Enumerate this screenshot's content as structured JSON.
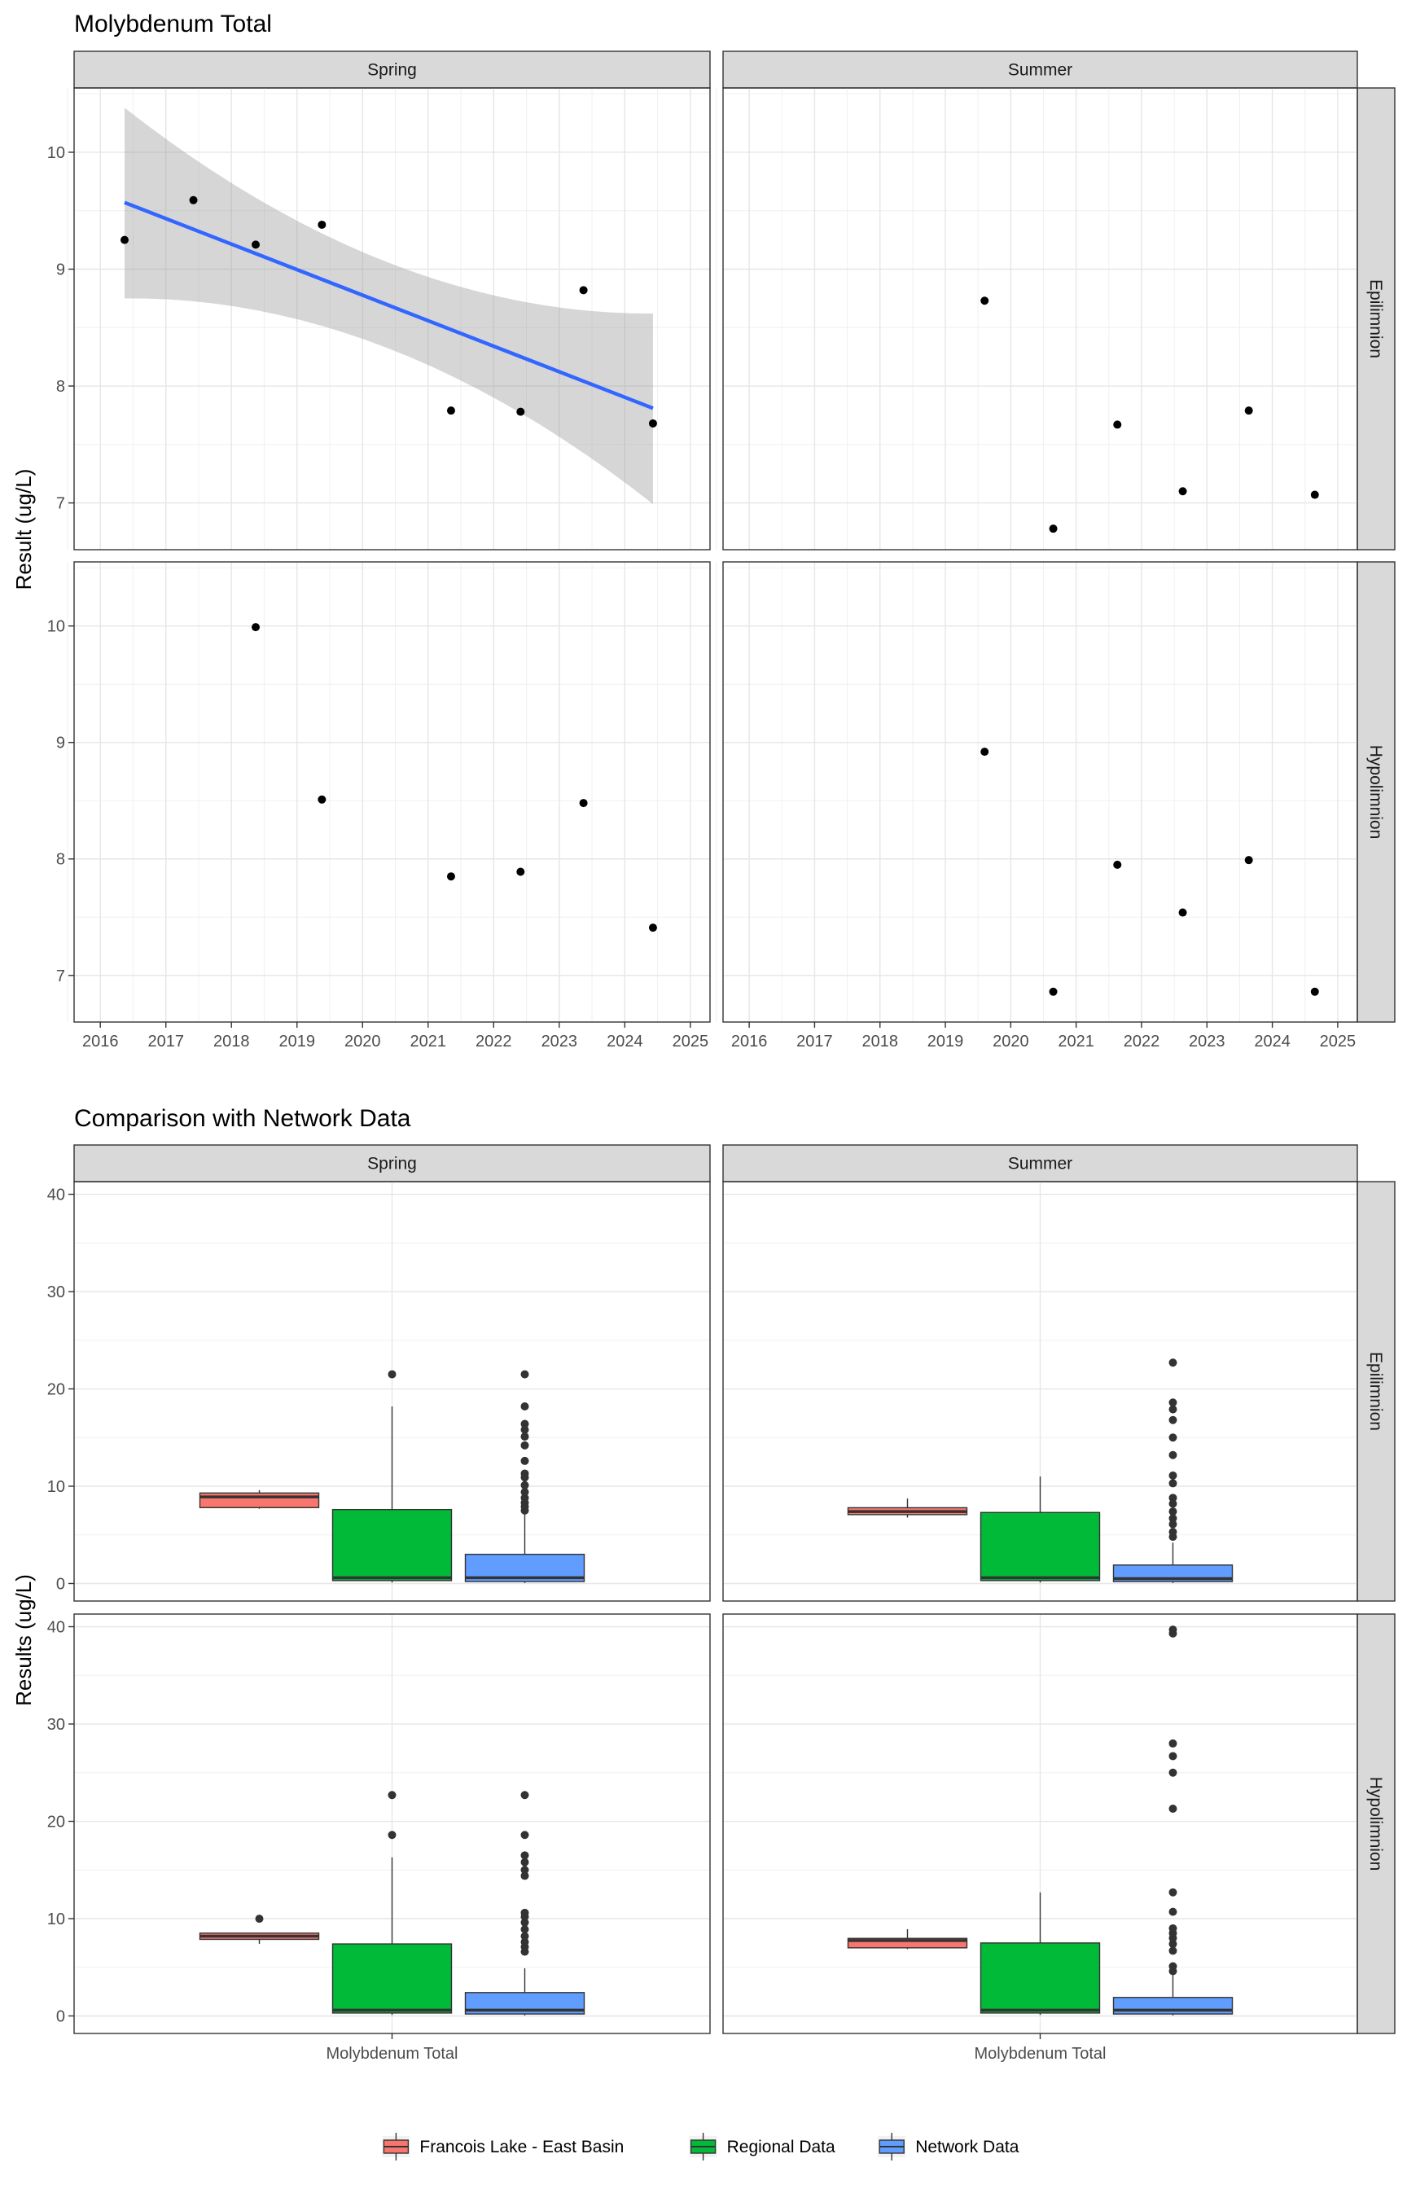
{
  "chart_data": [
    {
      "type": "scatter",
      "title": "Molybdenum Total",
      "ylabel": "Result (ug/L)",
      "xlabel": "",
      "facet_cols": [
        "Spring",
        "Summer"
      ],
      "facet_rows": [
        "Epilimnion",
        "Hypolimnion"
      ],
      "x_ticks": [
        "2016",
        "2017",
        "2018",
        "2019",
        "2020",
        "2021",
        "2022",
        "2023",
        "2024",
        "2025"
      ],
      "y_ticks": [
        "7",
        "8",
        "9",
        "10"
      ],
      "xlim": [
        2015.6,
        2025.3
      ],
      "ylim": [
        6.6,
        10.55
      ],
      "grid": true,
      "panels": [
        {
          "row": "Epilimnion",
          "col": "Spring",
          "x": [
            2016.37,
            2017.42,
            2018.37,
            2019.38,
            2021.35,
            2022.41,
            2023.37,
            2024.43
          ],
          "y": [
            9.25,
            9.59,
            9.21,
            9.38,
            7.79,
            7.78,
            8.82,
            7.68
          ],
          "trend": {
            "x": [
              2016.37,
              2024.43
            ],
            "y": [
              9.57,
              7.81
            ],
            "se_low": [
              8.75,
              7.0
            ],
            "se_high": [
              10.38,
              8.63
            ],
            "color": "#3366ff"
          }
        },
        {
          "row": "Epilimnion",
          "col": "Summer",
          "x": [
            2019.6,
            2020.65,
            2021.63,
            2022.63,
            2023.64,
            2024.65
          ],
          "y": [
            8.73,
            6.78,
            7.67,
            7.1,
            7.79,
            7.07
          ]
        },
        {
          "row": "Hypolimnion",
          "col": "Spring",
          "x": [
            2018.37,
            2019.38,
            2021.35,
            2022.41,
            2023.37,
            2024.43
          ],
          "y": [
            9.99,
            8.51,
            7.85,
            7.89,
            8.48,
            7.41
          ]
        },
        {
          "row": "Hypolimnion",
          "col": "Summer",
          "x": [
            2019.6,
            2020.65,
            2021.63,
            2022.63,
            2023.64,
            2024.65
          ],
          "y": [
            8.92,
            6.86,
            7.95,
            7.54,
            7.99,
            6.86
          ]
        }
      ]
    },
    {
      "type": "box",
      "title": "Comparison with Network Data",
      "ylabel": "Results (ug/L)",
      "xlabel": "",
      "category": "Molybdenum Total",
      "facet_cols": [
        "Spring",
        "Summer"
      ],
      "facet_rows": [
        "Epilimnion",
        "Hypolimnion"
      ],
      "y_ticks": [
        "0",
        "10",
        "20",
        "30",
        "40"
      ],
      "ylim": [
        -1.8,
        41.3
      ],
      "grid": true,
      "legend": {
        "position": "bottom",
        "entries": [
          {
            "name": "Francois Lake - East Basin",
            "color": "#f8766d"
          },
          {
            "name": "Regional Data",
            "color": "#00ba38"
          },
          {
            "name": "Network Data",
            "color": "#619cff"
          }
        ]
      },
      "panels": [
        {
          "row": "Epilimnion",
          "col": "Spring",
          "boxes": [
            {
              "series": "Francois Lake - East Basin",
              "low": 7.68,
              "q1": 7.8,
              "median": 8.9,
              "q3": 9.3,
              "high": 9.59,
              "outliers": []
            },
            {
              "series": "Regional Data",
              "low": 0.1,
              "q1": 0.3,
              "median": 0.6,
              "q3": 7.6,
              "high": 18.2,
              "outliers": [
                21.5
              ]
            },
            {
              "series": "Network Data",
              "low": 0.05,
              "q1": 0.2,
              "median": 0.6,
              "q3": 3.0,
              "high": 7.1,
              "outliers": [
                7.5,
                7.9,
                8.3,
                8.8,
                9.4,
                10.1,
                10.9,
                11.3,
                12.6,
                14.2,
                15.1,
                15.8,
                16.4,
                18.2,
                21.5
              ]
            }
          ]
        },
        {
          "row": "Epilimnion",
          "col": "Summer",
          "boxes": [
            {
              "series": "Francois Lake - East Basin",
              "low": 6.78,
              "q1": 7.08,
              "median": 7.4,
              "q3": 7.79,
              "high": 8.73,
              "outliers": []
            },
            {
              "series": "Regional Data",
              "low": 0.1,
              "q1": 0.3,
              "median": 0.6,
              "q3": 7.3,
              "high": 11.0,
              "outliers": []
            },
            {
              "series": "Network Data",
              "low": 0.05,
              "q1": 0.2,
              "median": 0.5,
              "q3": 1.9,
              "high": 4.2,
              "outliers": [
                4.8,
                5.3,
                6.1,
                6.7,
                7.4,
                8.2,
                8.8,
                10.3,
                11.1,
                13.2,
                15.0,
                16.8,
                17.9,
                18.6,
                22.7
              ]
            }
          ]
        },
        {
          "row": "Hypolimnion",
          "col": "Spring",
          "boxes": [
            {
              "series": "Francois Lake - East Basin",
              "low": 7.41,
              "q1": 7.87,
              "median": 8.2,
              "q3": 8.51,
              "high": 8.51,
              "outliers": [
                9.99
              ]
            },
            {
              "series": "Regional Data",
              "low": 0.1,
              "q1": 0.3,
              "median": 0.6,
              "q3": 7.4,
              "high": 16.3,
              "outliers": [
                18.6,
                22.7
              ]
            },
            {
              "series": "Network Data",
              "low": 0.05,
              "q1": 0.2,
              "median": 0.6,
              "q3": 2.4,
              "high": 4.9,
              "outliers": [
                6.6,
                7.1,
                7.6,
                8.2,
                8.9,
                9.6,
                10.2,
                10.6,
                14.4,
                15.0,
                15.8,
                16.5,
                18.6,
                22.7
              ]
            }
          ]
        },
        {
          "row": "Hypolimnion",
          "col": "Summer",
          "boxes": [
            {
              "series": "Francois Lake - East Basin",
              "low": 6.86,
              "q1": 7.0,
              "median": 7.75,
              "q3": 7.97,
              "high": 8.92,
              "outliers": []
            },
            {
              "series": "Regional Data",
              "low": 0.1,
              "q1": 0.3,
              "median": 0.6,
              "q3": 7.5,
              "high": 12.7,
              "outliers": []
            },
            {
              "series": "Network Data",
              "low": 0.05,
              "q1": 0.2,
              "median": 0.6,
              "q3": 1.9,
              "high": 4.2,
              "outliers": [
                4.6,
                5.1,
                6.7,
                7.4,
                8.0,
                8.5,
                9.0,
                10.7,
                12.7,
                21.3,
                25.0,
                26.7,
                28.0,
                39.3,
                39.7
              ]
            }
          ]
        }
      ]
    }
  ]
}
